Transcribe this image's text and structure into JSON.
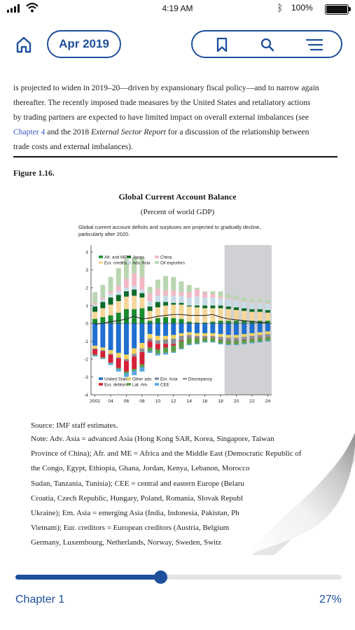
{
  "status_bar": {
    "time": "4:19 AM",
    "battery": "100%"
  },
  "toolbar": {
    "date_label": "Apr 2019",
    "icons": [
      "home-icon",
      "bookmark-icon",
      "search-icon",
      "menu-icon"
    ]
  },
  "reading": {
    "paragraph_lines": [
      "is projected to widen in 2019–20—driven by expansionary fiscal policy—and to narrow again",
      "thereafter. The recently imposed trade measures by the United States and retaliatory actions",
      "by trading partners are expected to have limited impact on overall external imbalances (see"
    ],
    "line4_link": "Chapter 4",
    "line4_mid": " and the 2018 ",
    "line4_em": "External Sector Report",
    "line4_tail": " for a discussion of the relationship between",
    "line5": "trade costs and external imbalances).",
    "figure_label": "Figure 1.16.",
    "figure_title": "Global Current Account Balance",
    "figure_subtitle": "(Percent of world GDP)",
    "figure_note_line1": "Global current account deficits and surpluses are projected to gradually decline,",
    "figure_note_line2": "particularly after 2020.",
    "source": "Source: IMF staff estimates.",
    "note_lines": [
      "Note: Adv. Asia = advanced Asia (Hong Kong SAR, Korea, Singapore, Taiwan",
      "Province of China); Afr. and ME = Africa and the Middle East (Democratic Republic of",
      "the Congo, Egypt, Ethiopia, Ghana, Jordan, Kenya, Lebanon, Morocco",
      "Sudan, Tanzania, Tunisia); CEE = central and eastern Europe (Belaru",
      "Croatia, Czech Republic, Hungary, Poland, Romania, Slovak Republ",
      "Ukraine); Em. Asia = emerging Asia (India, Indonesia, Pakistan, Ph",
      "Vietnam); Eur. creditors = European creditors (Austria, Belgium",
      "Germany, Luxembourg, Netherlands, Norway, Sweden, Switz"
    ]
  },
  "progress": {
    "chapter_label": "Chapter 1",
    "percent_label": "27%",
    "fraction": 0.27
  },
  "colors": {
    "accent": "#1d4f9c",
    "link": "#3b56c8"
  },
  "chart_data": {
    "type": "bar",
    "stacked": true,
    "years": [
      2002,
      2003,
      2004,
      2005,
      2006,
      2007,
      2008,
      2009,
      2010,
      2011,
      2012,
      2013,
      2014,
      2015,
      2016,
      2017,
      2018,
      2019,
      2020,
      2021,
      2022,
      2023,
      2024
    ],
    "x_tick_labels": [
      "2002",
      "04",
      "06",
      "08",
      "10",
      "12",
      "14",
      "16",
      "18",
      "20",
      "22",
      "24"
    ],
    "y_tick_labels": [
      "-4",
      "-3",
      "-2",
      "-1",
      "0",
      "1",
      "2",
      "3",
      "4"
    ],
    "ylim": [
      -4,
      4
    ],
    "projection_start": 2019,
    "positive_series": [
      {
        "name": "Afr. and ME",
        "color": "#1a8a2e",
        "values": [
          0.25,
          0.35,
          0.45,
          0.6,
          0.8,
          0.8,
          0.85,
          0.15,
          0.3,
          0.35,
          0.3,
          0.25,
          0.1,
          0.05,
          0.05,
          0.1,
          0.15,
          0.15,
          0.15,
          0.15,
          0.15,
          0.15,
          0.15
        ]
      },
      {
        "name": "Eur. creditors",
        "color": "#f5d69a",
        "values": [
          0.4,
          0.5,
          0.6,
          0.65,
          0.7,
          0.75,
          0.6,
          0.55,
          0.6,
          0.65,
          0.75,
          0.8,
          0.85,
          0.85,
          0.8,
          0.75,
          0.7,
          0.65,
          0.6,
          0.55,
          0.5,
          0.5,
          0.45
        ]
      },
      {
        "name": "Japan",
        "color": "#0b6b2a",
        "values": [
          0.3,
          0.35,
          0.4,
          0.35,
          0.3,
          0.35,
          0.25,
          0.25,
          0.3,
          0.2,
          0.1,
          0.1,
          0.05,
          0.1,
          0.15,
          0.15,
          0.15,
          0.15,
          0.15,
          0.15,
          0.15,
          0.15,
          0.15
        ]
      },
      {
        "name": "Adv. Asia",
        "color": "#c8dce8",
        "values": [
          0.1,
          0.15,
          0.2,
          0.2,
          0.2,
          0.2,
          0.2,
          0.3,
          0.35,
          0.35,
          0.4,
          0.4,
          0.45,
          0.5,
          0.45,
          0.45,
          0.4,
          0.4,
          0.4,
          0.35,
          0.35,
          0.35,
          0.35
        ]
      },
      {
        "name": "China",
        "color": "#f2b8c6",
        "values": [
          0.1,
          0.1,
          0.15,
          0.3,
          0.5,
          0.7,
          0.7,
          0.45,
          0.4,
          0.3,
          0.3,
          0.2,
          0.3,
          0.4,
          0.3,
          0.2,
          0.1,
          0.05,
          0.05,
          0.05,
          0.05,
          0.05,
          0.05
        ]
      },
      {
        "name": "Oil exporters",
        "color": "#b8d6b0",
        "values": [
          0.6,
          0.7,
          0.8,
          1.0,
          1.1,
          0.9,
          1.1,
          0.35,
          0.5,
          0.8,
          0.75,
          0.6,
          0.4,
          0.1,
          0.05,
          0.15,
          0.3,
          0.25,
          0.2,
          0.2,
          0.15,
          0.15,
          0.15
        ]
      }
    ],
    "negative_series": [
      {
        "name": "United States",
        "color": "#1e6fd0",
        "values": [
          -1.25,
          -1.35,
          -1.5,
          -1.65,
          -1.75,
          -1.4,
          -1.1,
          -0.6,
          -0.7,
          -0.7,
          -0.65,
          -0.55,
          -0.5,
          -0.55,
          -0.55,
          -0.55,
          -0.6,
          -0.65,
          -0.65,
          -0.6,
          -0.55,
          -0.5,
          -0.45
        ]
      },
      {
        "name": "Other adv.",
        "color": "#f2d25c",
        "values": [
          -0.15,
          -0.15,
          -0.2,
          -0.25,
          -0.25,
          -0.3,
          -0.3,
          -0.25,
          -0.25,
          -0.2,
          -0.2,
          -0.15,
          -0.15,
          -0.15,
          -0.15,
          -0.15,
          -0.15,
          -0.15,
          -0.15,
          -0.15,
          -0.15,
          -0.15,
          -0.15
        ]
      },
      {
        "name": "Em. Asia",
        "color": "#8a8f96",
        "values": [
          -0.05,
          -0.05,
          -0.05,
          -0.05,
          -0.1,
          -0.15,
          -0.2,
          -0.15,
          -0.2,
          -0.25,
          -0.3,
          -0.25,
          -0.15,
          -0.1,
          -0.1,
          -0.1,
          -0.15,
          -0.15,
          -0.15,
          -0.15,
          -0.15,
          -0.15,
          -0.15
        ]
      },
      {
        "name": "Eur. debtors",
        "color": "#d6213a",
        "values": [
          -0.3,
          -0.35,
          -0.45,
          -0.55,
          -0.6,
          -0.7,
          -0.7,
          -0.35,
          -0.3,
          -0.2,
          -0.1,
          -0.05,
          -0.02,
          -0.02,
          -0.02,
          -0.02,
          -0.02,
          -0.02,
          -0.02,
          -0.02,
          -0.02,
          -0.02,
          -0.02
        ]
      },
      {
        "name": "Lat. Am.",
        "color": "#5c9c4a",
        "values": [
          -0.05,
          -0.05,
          -0.03,
          -0.05,
          -0.1,
          -0.1,
          -0.15,
          -0.2,
          -0.25,
          -0.3,
          -0.35,
          -0.4,
          -0.35,
          -0.3,
          -0.2,
          -0.2,
          -0.2,
          -0.2,
          -0.2,
          -0.2,
          -0.2,
          -0.2,
          -0.2
        ]
      },
      {
        "name": "CEE",
        "color": "#5aa7e0",
        "values": [
          -0.05,
          -0.05,
          -0.1,
          -0.15,
          -0.2,
          -0.25,
          -0.25,
          -0.1,
          -0.1,
          -0.1,
          -0.05,
          -0.05,
          -0.05,
          -0.05,
          -0.05,
          -0.05,
          -0.05,
          -0.05,
          -0.05,
          -0.05,
          -0.05,
          -0.05,
          -0.05
        ]
      }
    ],
    "line_series": {
      "name": "Discrepancy",
      "color": "#2b2b2b",
      "values": [
        -0.05,
        0.0,
        0.1,
        0.15,
        0.25,
        0.4,
        0.25,
        0.3,
        0.4,
        0.45,
        0.5,
        0.5,
        0.45,
        0.45,
        0.45,
        0.5,
        0.35,
        0.25,
        0.2,
        0.15,
        0.1,
        0.05,
        0.05
      ]
    },
    "legend_top": [
      "Afr. and ME",
      "Japan",
      "China",
      "Eur. creditors",
      "Adv. Asia",
      "Oil exporters"
    ],
    "legend_bottom": [
      "United States",
      "Other adv.",
      "Em. Asia",
      "Discrepancy",
      "Eur. debtors",
      "Lat. Am.",
      "CEE"
    ]
  }
}
